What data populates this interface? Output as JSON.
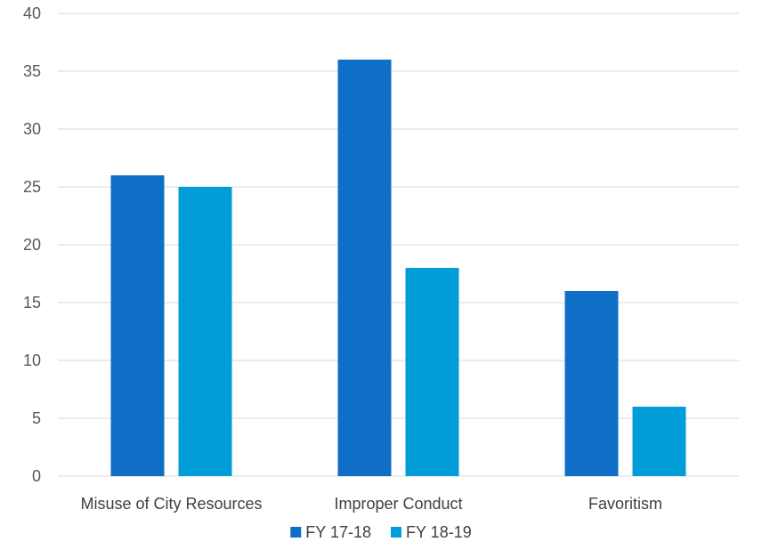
{
  "chart_data": {
    "type": "bar",
    "categories": [
      "Misuse of City Resources",
      "Improper Conduct",
      "Favoritism"
    ],
    "series": [
      {
        "name": "FY 17-18",
        "values": [
          26,
          36,
          16
        ],
        "color": "#0F6FC6"
      },
      {
        "name": "FY 18-19",
        "values": [
          25,
          18,
          6
        ],
        "color": "#009DD9"
      }
    ],
    "yticks": [
      0,
      5,
      10,
      15,
      20,
      25,
      30,
      35,
      40
    ],
    "ylim": [
      0,
      40
    ],
    "grid": true,
    "legend_position": "bottom",
    "title": "",
    "xlabel": "",
    "ylabel": ""
  }
}
